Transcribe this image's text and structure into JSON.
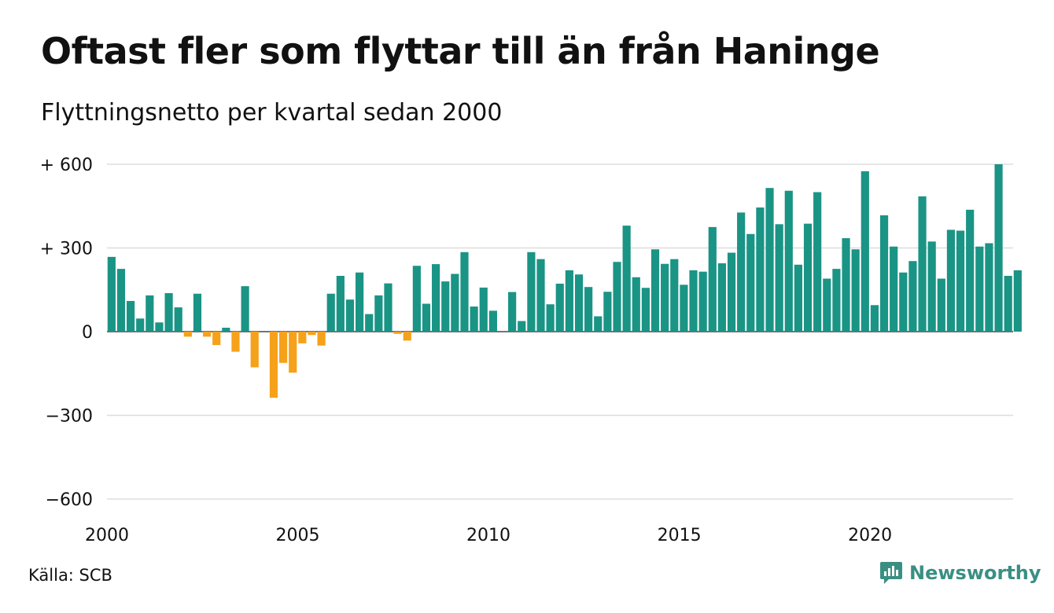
{
  "title": "Oftast fler som flyttar till än från Haninge",
  "subtitle": "Flyttningsnetto per kvartal sedan 2000",
  "source": "Källa: SCB",
  "brand": {
    "name": "Newsworthy",
    "icon": "newsworthy-logo-icon"
  },
  "colors": {
    "positive": "#1a9485",
    "negative": "#f6a11a",
    "grid": "#dddddd",
    "axis": "#222222"
  },
  "chart_data": {
    "type": "bar",
    "title": "Oftast fler som flyttar till än från Haninge",
    "subtitle": "Flyttningsnetto per kvartal sedan 2000",
    "xlabel": "",
    "ylabel": "",
    "ylim": [
      -600,
      600
    ],
    "yticks": [
      600,
      300,
      0,
      -300,
      -600
    ],
    "ytick_labels": [
      "+ 600",
      "+ 300",
      "0",
      "−300",
      "−600"
    ],
    "xlim": [
      2000,
      2023.75
    ],
    "xticks": [
      2000,
      2005,
      2010,
      2015,
      2020
    ],
    "xtick_labels": [
      "2000",
      "2005",
      "2010",
      "2015",
      "2020"
    ],
    "grid": true,
    "legend": "none",
    "x": [
      "2000 Q1",
      "2000 Q2",
      "2000 Q3",
      "2000 Q4",
      "2001 Q1",
      "2001 Q2",
      "2001 Q3",
      "2001 Q4",
      "2002 Q1",
      "2002 Q2",
      "2002 Q3",
      "2002 Q4",
      "2003 Q1",
      "2003 Q2",
      "2003 Q3",
      "2003 Q4",
      "2004 Q1",
      "2004 Q2",
      "2004 Q3",
      "2004 Q4",
      "2005 Q1",
      "2005 Q2",
      "2005 Q3",
      "2005 Q4",
      "2006 Q1",
      "2006 Q2",
      "2006 Q3",
      "2006 Q4",
      "2007 Q1",
      "2007 Q2",
      "2007 Q3",
      "2007 Q4",
      "2008 Q1",
      "2008 Q2",
      "2008 Q3",
      "2008 Q4",
      "2009 Q1",
      "2009 Q2",
      "2009 Q3",
      "2009 Q4",
      "2010 Q1",
      "2010 Q2",
      "2010 Q3",
      "2010 Q4",
      "2011 Q1",
      "2011 Q2",
      "2011 Q3",
      "2011 Q4",
      "2012 Q1",
      "2012 Q2",
      "2012 Q3",
      "2012 Q4",
      "2013 Q1",
      "2013 Q2",
      "2013 Q3",
      "2013 Q4",
      "2014 Q1",
      "2014 Q2",
      "2014 Q3",
      "2014 Q4",
      "2015 Q1",
      "2015 Q2",
      "2015 Q3",
      "2015 Q4",
      "2016 Q1",
      "2016 Q2",
      "2016 Q3",
      "2016 Q4",
      "2017 Q1",
      "2017 Q2",
      "2017 Q3",
      "2017 Q4",
      "2018 Q1",
      "2018 Q2",
      "2018 Q3",
      "2018 Q4",
      "2019 Q1",
      "2019 Q2",
      "2019 Q3",
      "2019 Q4",
      "2020 Q1",
      "2020 Q2",
      "2020 Q3",
      "2020 Q4",
      "2021 Q1",
      "2021 Q2",
      "2021 Q3",
      "2021 Q4",
      "2022 Q1",
      "2022 Q2",
      "2022 Q3",
      "2022 Q4",
      "2023 Q1",
      "2023 Q2",
      "2023 Q3",
      "2023 Q4"
    ],
    "values": [
      268,
      225,
      110,
      47,
      130,
      33,
      138,
      87,
      -18,
      136,
      -18,
      -48,
      14,
      -72,
      163,
      -128,
      0,
      -237,
      -112,
      -147,
      -42,
      -12,
      -50,
      136,
      200,
      115,
      212,
      63,
      130,
      173,
      -8,
      -32,
      236,
      100,
      242,
      180,
      207,
      285,
      90,
      158,
      75,
      0,
      142,
      38,
      285,
      260,
      98,
      172,
      220,
      205,
      160,
      55,
      143,
      250,
      380,
      195,
      157,
      295,
      243,
      260,
      168,
      220,
      215,
      375,
      245,
      283,
      427,
      350,
      445,
      515,
      385,
      505,
      240,
      387,
      500,
      190,
      225,
      335,
      295,
      575,
      95,
      417,
      305,
      212,
      253,
      485,
      323,
      190,
      365,
      362,
      437,
      305,
      317,
      600,
      200,
      220
    ]
  }
}
